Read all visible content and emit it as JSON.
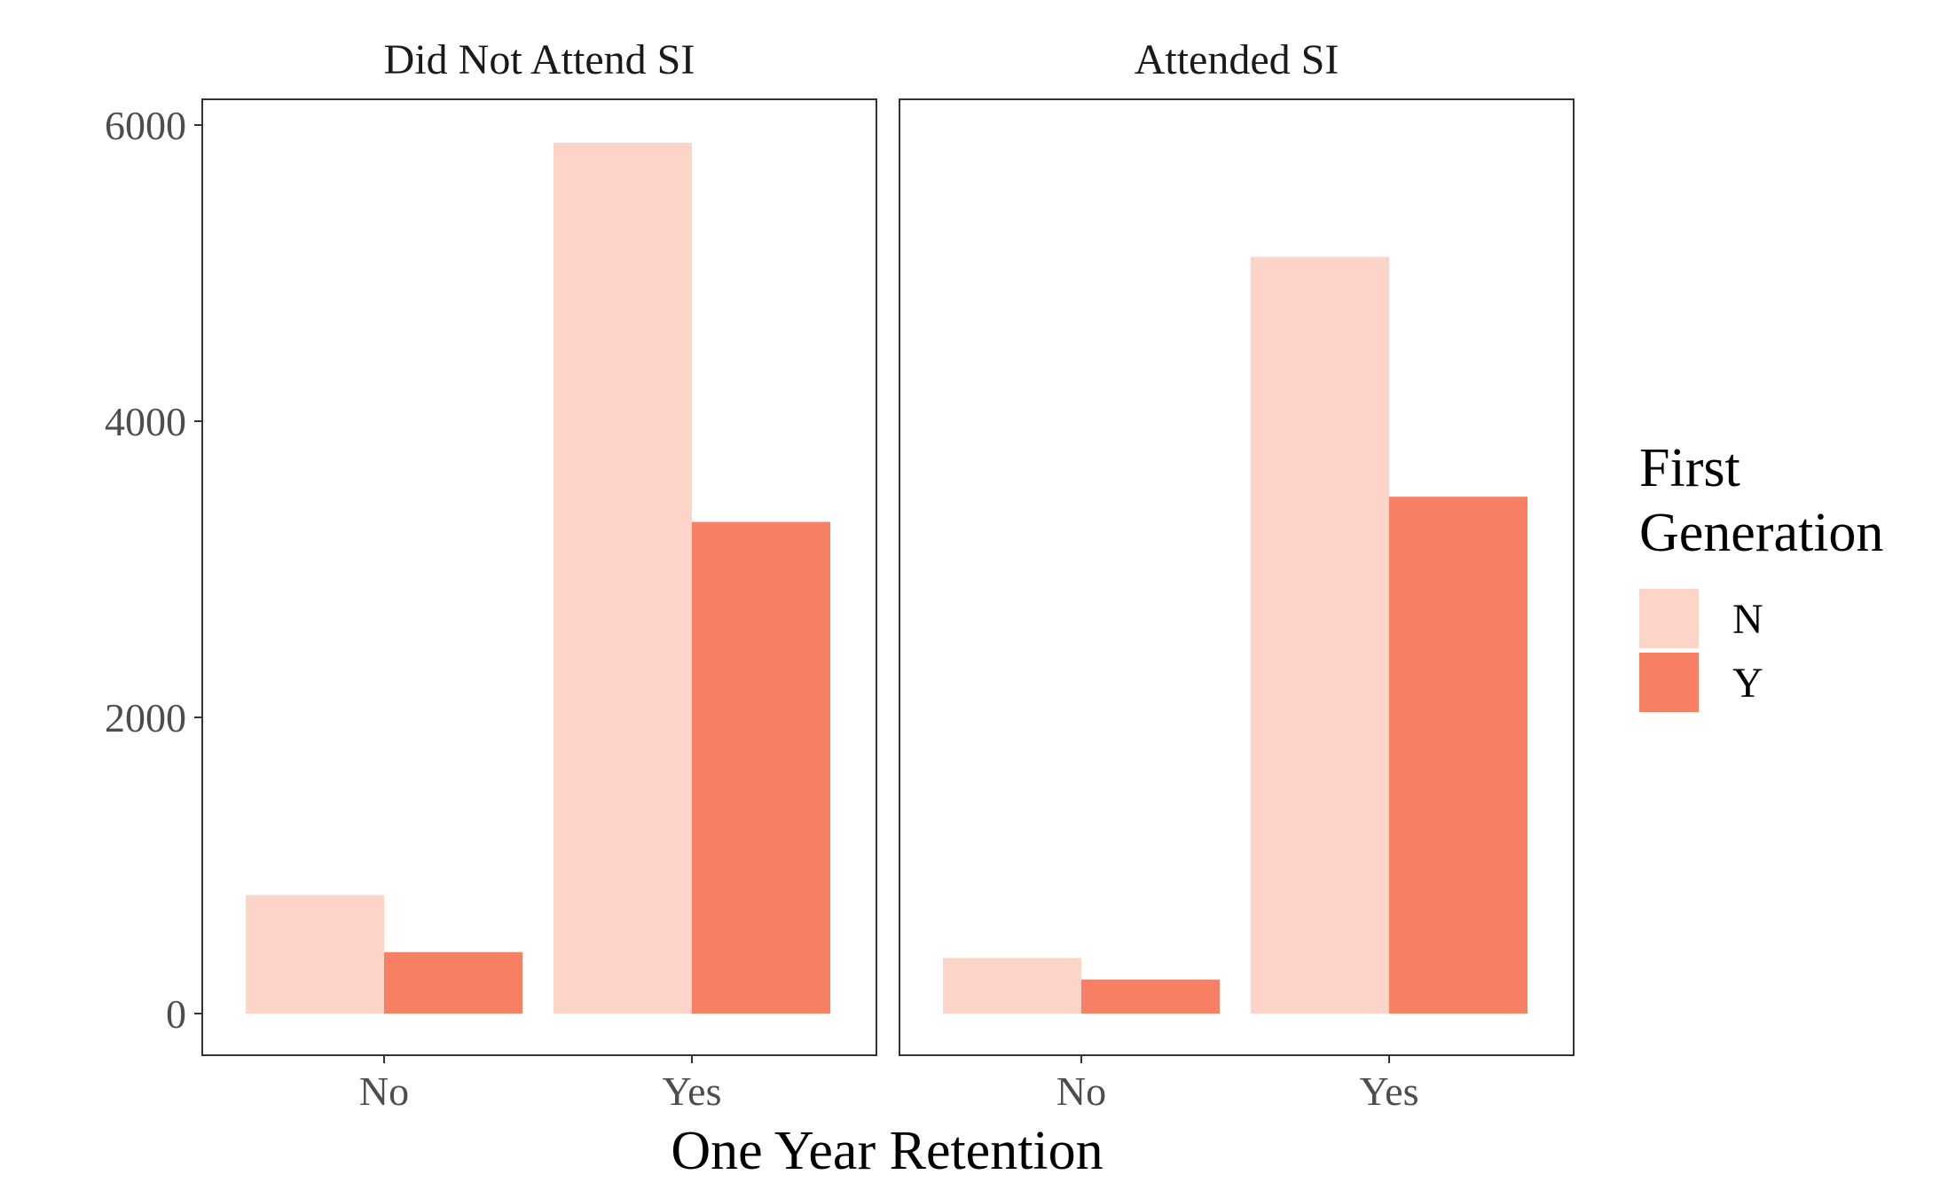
{
  "chart_data": {
    "type": "bar",
    "xlabel": "One Year Retention",
    "ylabel": "",
    "ylim": [
      -300,
      6150
    ],
    "yticks": [
      0,
      2000,
      4000,
      6000
    ],
    "categories": [
      "No",
      "Yes"
    ],
    "legend": {
      "title_lines": [
        "First",
        "Generation"
      ],
      "placement": "right"
    },
    "series": [
      {
        "name": "N",
        "color": "#FCD5C8"
      },
      {
        "name": "Y",
        "color": "#F77F63"
      }
    ],
    "panels": [
      {
        "title": "Did Not Attend SI",
        "values": {
          "N": [
            800,
            5880
          ],
          "Y": [
            415,
            3320
          ]
        }
      },
      {
        "title": "Attended SI",
        "values": {
          "N": [
            375,
            5110
          ],
          "Y": [
            230,
            3490
          ]
        }
      }
    ],
    "grid": false
  }
}
